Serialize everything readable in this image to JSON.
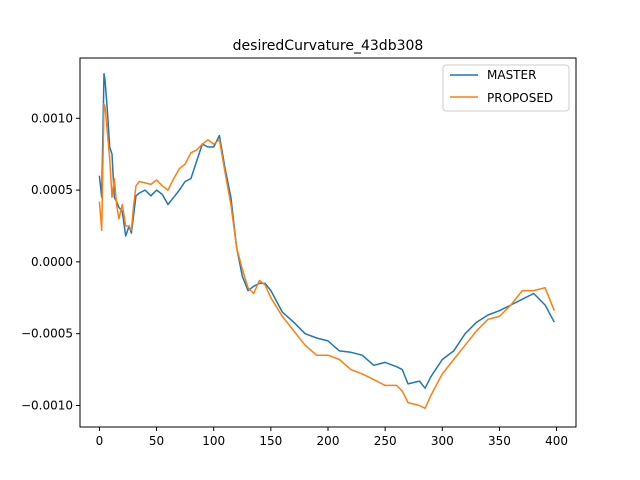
{
  "chart_data": {
    "type": "line",
    "title": "desiredCurvature_43db308",
    "xlabel": "",
    "ylabel": "",
    "xlim": [
      -17,
      417
    ],
    "ylim": [
      -0.00115,
      0.00142
    ],
    "xticks": [
      0,
      50,
      100,
      150,
      200,
      250,
      300,
      350,
      400
    ],
    "yticks": [
      -0.001,
      -0.0005,
      0.0,
      0.0005,
      0.001
    ],
    "ytick_labels": [
      "−0.0010",
      "−0.0005",
      "0.0000",
      "0.0005",
      "0.0010"
    ],
    "grid": false,
    "legend_position": "top-right",
    "series": [
      {
        "name": "MASTER",
        "color": "#1f77b4",
        "x": [
          0,
          2,
          4,
          5,
          7,
          9,
          11,
          13,
          15,
          17,
          20,
          23,
          26,
          28,
          30,
          32,
          35,
          40,
          45,
          50,
          55,
          60,
          65,
          70,
          75,
          80,
          85,
          90,
          95,
          100,
          105,
          110,
          115,
          120,
          125,
          130,
          135,
          140,
          145,
          150,
          160,
          170,
          180,
          190,
          200,
          210,
          220,
          230,
          240,
          250,
          260,
          265,
          270,
          280,
          285,
          290,
          300,
          310,
          320,
          330,
          340,
          350,
          360,
          370,
          380,
          390,
          398
        ],
        "y": [
          0.0006,
          0.00045,
          0.00131,
          0.00126,
          0.00105,
          0.0008,
          0.00075,
          0.00045,
          0.00042,
          0.00038,
          0.00035,
          0.00018,
          0.00025,
          0.0002,
          0.00033,
          0.00046,
          0.00048,
          0.0005,
          0.00046,
          0.0005,
          0.00047,
          0.0004,
          0.00045,
          0.0005,
          0.00056,
          0.00058,
          0.0007,
          0.00082,
          0.0008,
          0.0008,
          0.00088,
          0.00065,
          0.00045,
          0.0001,
          -0.0001,
          -0.0002,
          -0.00017,
          -0.00015,
          -0.00015,
          -0.0002,
          -0.00035,
          -0.00042,
          -0.0005,
          -0.00053,
          -0.00055,
          -0.00062,
          -0.00063,
          -0.00065,
          -0.00072,
          -0.0007,
          -0.00073,
          -0.00075,
          -0.00085,
          -0.00083,
          -0.00088,
          -0.0008,
          -0.00068,
          -0.00062,
          -0.0005,
          -0.00042,
          -0.00037,
          -0.00034,
          -0.0003,
          -0.00026,
          -0.00022,
          -0.0003,
          -0.00042
        ]
      },
      {
        "name": "PROPOSED",
        "color": "#ff7f0e",
        "x": [
          0,
          2,
          4,
          5,
          7,
          9,
          11,
          13,
          15,
          17,
          20,
          23,
          26,
          28,
          30,
          32,
          35,
          40,
          45,
          50,
          55,
          60,
          65,
          70,
          75,
          80,
          85,
          90,
          95,
          100,
          105,
          110,
          115,
          120,
          125,
          130,
          135,
          140,
          145,
          150,
          160,
          170,
          180,
          190,
          200,
          210,
          220,
          230,
          240,
          250,
          260,
          265,
          270,
          280,
          285,
          290,
          300,
          310,
          320,
          330,
          340,
          350,
          360,
          370,
          380,
          390,
          398
        ],
        "y": [
          0.00042,
          0.00022,
          0.0011,
          0.00108,
          0.0009,
          0.00072,
          0.00045,
          0.00058,
          0.0004,
          0.0003,
          0.0004,
          0.00025,
          0.00025,
          0.00022,
          0.0004,
          0.00053,
          0.00056,
          0.00055,
          0.00054,
          0.00057,
          0.00053,
          0.0005,
          0.00058,
          0.00065,
          0.00068,
          0.00076,
          0.00078,
          0.00082,
          0.00085,
          0.00082,
          0.00085,
          0.00062,
          0.0004,
          0.0001,
          -5e-05,
          -0.00018,
          -0.00022,
          -0.00013,
          -0.00016,
          -0.00025,
          -0.00038,
          -0.00048,
          -0.00058,
          -0.00065,
          -0.00065,
          -0.00068,
          -0.00075,
          -0.00078,
          -0.00082,
          -0.00086,
          -0.00086,
          -0.0009,
          -0.00098,
          -0.001,
          -0.00102,
          -0.00093,
          -0.00078,
          -0.00068,
          -0.00058,
          -0.00048,
          -0.0004,
          -0.00038,
          -0.0003,
          -0.0002,
          -0.0002,
          -0.00018,
          -0.00034
        ]
      }
    ]
  }
}
